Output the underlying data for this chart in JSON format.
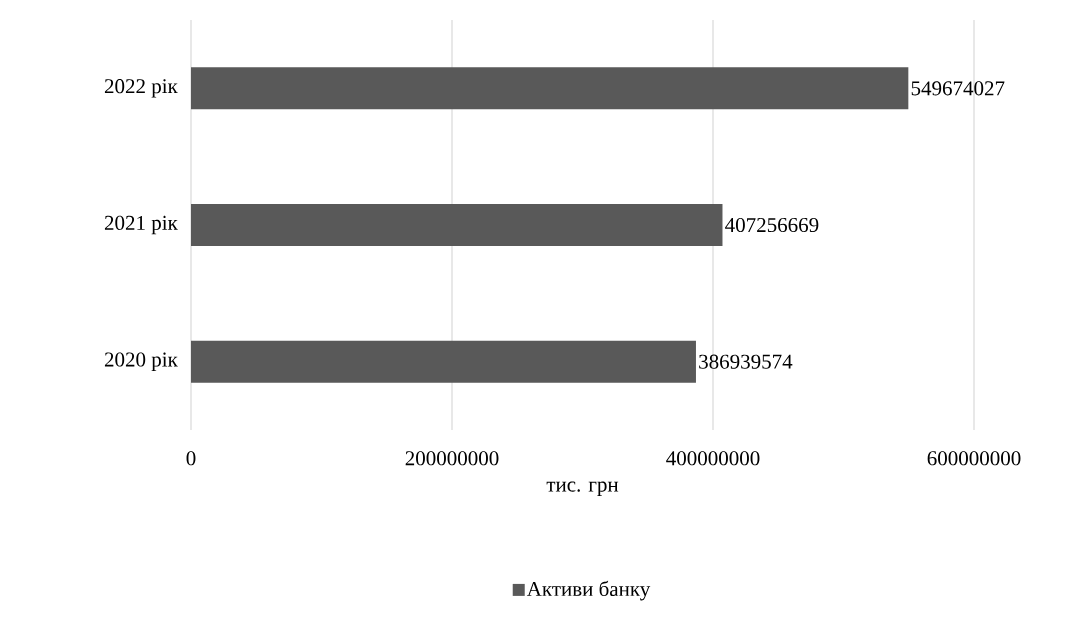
{
  "chart_data": {
    "type": "bar",
    "orientation": "horizontal",
    "xlabel": "тис. грн",
    "categories": [
      "2022 рік",
      "2021 рік",
      "2020 рік"
    ],
    "series": [
      {
        "name": "Активи банку",
        "color": "#595959",
        "values": [
          549674027,
          407256669,
          386939574
        ]
      }
    ],
    "xlim": [
      0,
      600000000
    ],
    "xticks": [
      0,
      200000000,
      400000000,
      600000000
    ],
    "grid": "x",
    "legend": "bottom",
    "data_labels": true
  }
}
